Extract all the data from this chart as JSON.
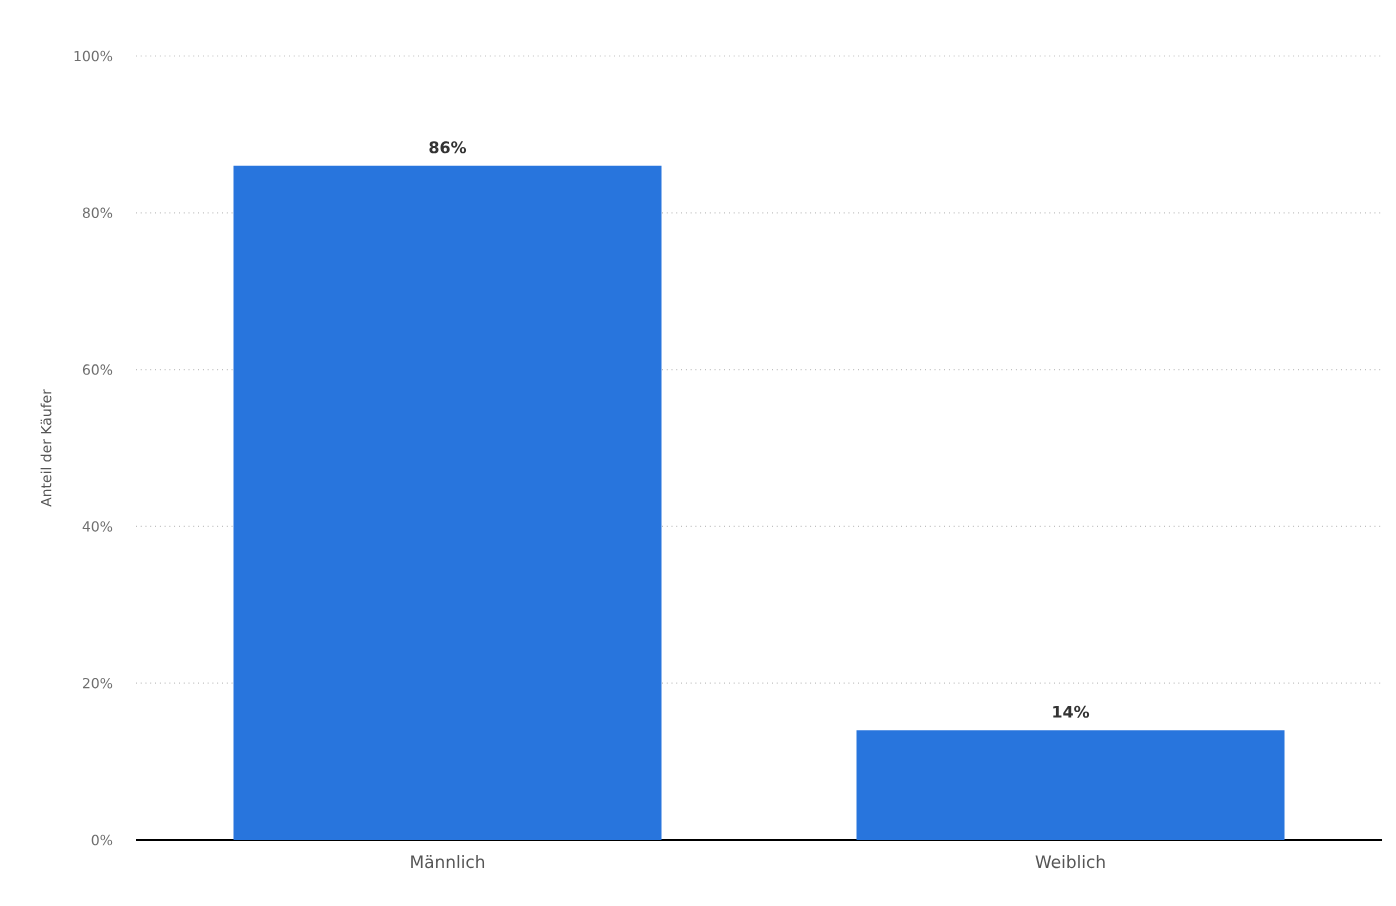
{
  "chart_data": {
    "type": "bar",
    "ylabel": "Anteil der Käufer",
    "categories": [
      "Männlich",
      "Weiblich"
    ],
    "values": [
      86,
      14
    ],
    "color": "#2875dd",
    "value_labels": [
      "86%",
      "14%"
    ],
    "ylim": [
      0,
      100
    ],
    "yticks": [
      {
        "value": 0,
        "label": "0%"
      },
      {
        "value": 20,
        "label": "20%"
      },
      {
        "value": 40,
        "label": "40%"
      },
      {
        "value": 60,
        "label": "60%"
      },
      {
        "value": 80,
        "label": "80%"
      },
      {
        "value": 100,
        "label": "100%"
      }
    ],
    "grid": "y"
  }
}
